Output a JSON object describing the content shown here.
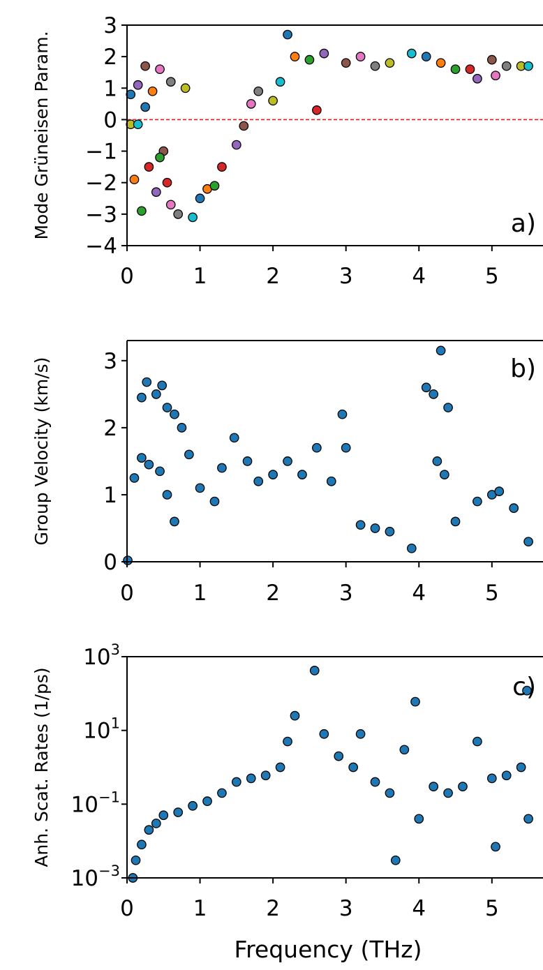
{
  "xlabel": "Frequency (THz)",
  "chart_data": [
    {
      "type": "scatter",
      "panel_label": "a)",
      "xlabel": "",
      "ylabel": "Mode Grüneisen Param.",
      "xlim": [
        0,
        5.7
      ],
      "ylim": [
        -4,
        3
      ],
      "xticks": [
        "0",
        "1",
        "2",
        "3",
        "4",
        "5"
      ],
      "yticks": [
        "−4",
        "−3",
        "−2",
        "−1",
        "0",
        "1",
        "2",
        "3"
      ],
      "reference_line": {
        "y": 0,
        "color": "#e41a1c",
        "style": "dashed"
      },
      "series_colors": [
        "#1f77b4",
        "#ff7f0e",
        "#2ca02c",
        "#d62728",
        "#9467bd",
        "#8c564b",
        "#e377c2",
        "#7f7f7f",
        "#bcbd22",
        "#17becf"
      ],
      "points_sample": [
        [
          0.05,
          0.8
        ],
        [
          0.1,
          -1.9
        ],
        [
          0.2,
          -2.9
        ],
        [
          0.3,
          -1.5
        ],
        [
          0.4,
          -2.3
        ],
        [
          0.5,
          -1.0
        ],
        [
          0.6,
          -2.7
        ],
        [
          0.7,
          -3.0
        ],
        [
          0.05,
          -0.15
        ],
        [
          0.15,
          -0.15
        ],
        [
          0.25,
          0.4
        ],
        [
          0.35,
          0.9
        ],
        [
          0.45,
          -1.2
        ],
        [
          0.55,
          -2.0
        ],
        [
          0.15,
          1.1
        ],
        [
          0.25,
          1.7
        ],
        [
          0.45,
          1.6
        ],
        [
          0.6,
          1.2
        ],
        [
          0.8,
          1.0
        ],
        [
          0.9,
          -3.1
        ],
        [
          1.0,
          -2.5
        ],
        [
          1.1,
          -2.2
        ],
        [
          1.2,
          -2.1
        ],
        [
          1.3,
          -1.5
        ],
        [
          1.5,
          -0.8
        ],
        [
          1.6,
          -0.2
        ],
        [
          1.7,
          0.5
        ],
        [
          1.8,
          0.9
        ],
        [
          2.0,
          0.6
        ],
        [
          2.1,
          1.2
        ],
        [
          2.2,
          2.7
        ],
        [
          2.3,
          2.0
        ],
        [
          2.5,
          1.9
        ],
        [
          2.6,
          0.3
        ],
        [
          2.7,
          2.1
        ],
        [
          3.0,
          1.8
        ],
        [
          3.2,
          2.0
        ],
        [
          3.4,
          1.7
        ],
        [
          3.6,
          1.8
        ],
        [
          3.9,
          2.1
        ],
        [
          4.1,
          2.0
        ],
        [
          4.3,
          1.8
        ],
        [
          4.5,
          1.6
        ],
        [
          4.7,
          1.6
        ],
        [
          4.8,
          1.3
        ],
        [
          5.0,
          1.9
        ],
        [
          5.05,
          1.4
        ],
        [
          5.2,
          1.7
        ],
        [
          5.4,
          1.7
        ],
        [
          5.5,
          1.7
        ]
      ]
    },
    {
      "type": "scatter",
      "panel_label": "b)",
      "xlabel": "",
      "ylabel": "Group Velocity (km/s)",
      "xlim": [
        0,
        5.7
      ],
      "ylim": [
        0,
        3.3
      ],
      "xticks": [
        "0",
        "1",
        "2",
        "3",
        "4",
        "5"
      ],
      "yticks": [
        "0",
        "1",
        "2",
        "3"
      ],
      "points_sample": [
        [
          0.2,
          2.45
        ],
        [
          0.27,
          2.68
        ],
        [
          0.4,
          2.5
        ],
        [
          0.48,
          2.63
        ],
        [
          0.55,
          2.3
        ],
        [
          0.65,
          2.2
        ],
        [
          0.75,
          2.0
        ],
        [
          0.85,
          1.6
        ],
        [
          0.1,
          1.25
        ],
        [
          0.2,
          1.55
        ],
        [
          0.3,
          1.45
        ],
        [
          0.45,
          1.35
        ],
        [
          0.55,
          1.0
        ],
        [
          0.65,
          0.6
        ],
        [
          1.0,
          1.1
        ],
        [
          1.2,
          0.9
        ],
        [
          1.3,
          1.4
        ],
        [
          1.47,
          1.85
        ],
        [
          1.65,
          1.5
        ],
        [
          1.8,
          1.2
        ],
        [
          2.0,
          1.3
        ],
        [
          2.2,
          1.5
        ],
        [
          2.4,
          1.3
        ],
        [
          2.6,
          1.7
        ],
        [
          2.8,
          1.2
        ],
        [
          2.95,
          2.2
        ],
        [
          3.0,
          1.7
        ],
        [
          3.2,
          0.55
        ],
        [
          3.4,
          0.5
        ],
        [
          3.6,
          0.45
        ],
        [
          3.9,
          0.2
        ],
        [
          4.1,
          2.6
        ],
        [
          4.2,
          2.5
        ],
        [
          4.25,
          1.5
        ],
        [
          4.3,
          3.15
        ],
        [
          4.35,
          1.3
        ],
        [
          4.4,
          2.3
        ],
        [
          4.5,
          0.6
        ],
        [
          4.8,
          0.9
        ],
        [
          5.0,
          1.0
        ],
        [
          5.1,
          1.05
        ],
        [
          5.3,
          0.8
        ],
        [
          5.5,
          0.3
        ],
        [
          0.01,
          0.02
        ]
      ]
    },
    {
      "type": "scatter",
      "panel_label": "c)",
      "xlabel": "Frequency (THz)",
      "ylabel": "Anh. Scat. Rates (1/ps)",
      "xlim": [
        0,
        5.7
      ],
      "ylim": [
        0.001,
        1000
      ],
      "yscale": "log",
      "xticks": [
        "0",
        "1",
        "2",
        "3",
        "4",
        "5"
      ],
      "yticks": [
        {
          "base": "10",
          "exp": "−3"
        },
        {
          "base": "10",
          "exp": "−1"
        },
        {
          "base": "10",
          "exp": "1"
        },
        {
          "base": "10",
          "exp": "3"
        }
      ],
      "color": "#1f77b4",
      "points_sample": [
        [
          0.08,
          0.001
        ],
        [
          0.12,
          0.003
        ],
        [
          0.2,
          0.008
        ],
        [
          0.3,
          0.02
        ],
        [
          0.4,
          0.03
        ],
        [
          0.5,
          0.05
        ],
        [
          0.7,
          0.06
        ],
        [
          0.9,
          0.09
        ],
        [
          1.1,
          0.12
        ],
        [
          1.3,
          0.2
        ],
        [
          1.5,
          0.4
        ],
        [
          1.7,
          0.5
        ],
        [
          1.9,
          0.6
        ],
        [
          2.1,
          1.0
        ],
        [
          2.2,
          5.0
        ],
        [
          2.3,
          25
        ],
        [
          2.57,
          420
        ],
        [
          2.7,
          8
        ],
        [
          2.9,
          2.0
        ],
        [
          3.1,
          1.0
        ],
        [
          3.2,
          8
        ],
        [
          3.4,
          0.4
        ],
        [
          3.6,
          0.2
        ],
        [
          3.68,
          0.003
        ],
        [
          3.8,
          3.0
        ],
        [
          3.95,
          60
        ],
        [
          4.0,
          0.04
        ],
        [
          4.2,
          0.3
        ],
        [
          4.4,
          0.2
        ],
        [
          4.6,
          0.3
        ],
        [
          4.8,
          5
        ],
        [
          5.0,
          0.5
        ],
        [
          5.05,
          0.007
        ],
        [
          5.2,
          0.6
        ],
        [
          5.4,
          1.0
        ],
        [
          5.48,
          120
        ],
        [
          5.5,
          0.04
        ]
      ]
    }
  ]
}
